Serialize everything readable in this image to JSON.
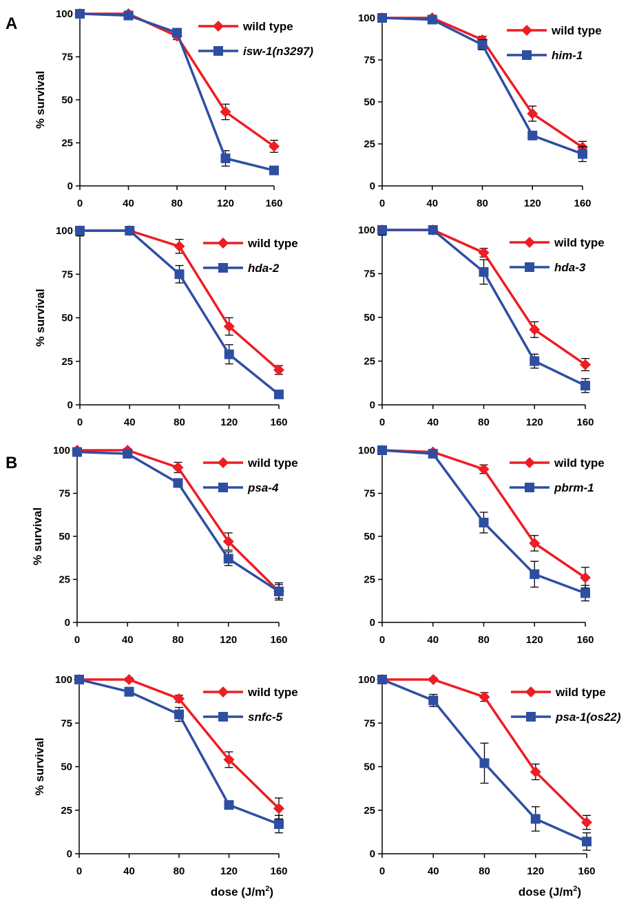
{
  "panel_labels": [
    "A",
    "B"
  ],
  "colors": {
    "wild_type": "#ee1c24",
    "mutant": "#2e4ea2",
    "axis": "#000000"
  },
  "chart_data": [
    {
      "type": "line",
      "categories": [
        0,
        40,
        80,
        120,
        160
      ],
      "ylim": [
        0,
        100
      ],
      "yticks": [
        0,
        25,
        50,
        75,
        100
      ],
      "ylabel": "% survival",
      "xlabel": "",
      "legend_position": "top-right",
      "series": [
        {
          "name": "wild type",
          "marker": "diamond",
          "values": [
            100,
            100,
            87,
            43,
            23
          ],
          "errors": [
            1,
            1,
            2,
            4.5,
            3.5
          ]
        },
        {
          "name": "isw-1(n3297)",
          "marker": "square",
          "values": [
            100,
            99,
            89,
            16,
            9
          ],
          "errors": [
            1,
            1.5,
            2,
            4.5,
            1.5
          ]
        }
      ]
    },
    {
      "type": "line",
      "categories": [
        0,
        40,
        80,
        120,
        160
      ],
      "ylim": [
        0,
        100
      ],
      "yticks": [
        0,
        25,
        50,
        75,
        100
      ],
      "ylabel": "",
      "xlabel": "",
      "legend_position": "top-right",
      "series": [
        {
          "name": "wild type",
          "marker": "diamond",
          "values": [
            100,
            100,
            87,
            43,
            23
          ],
          "errors": [
            1,
            1,
            2,
            4.5,
            3.5
          ]
        },
        {
          "name": "him-1",
          "marker": "square",
          "values": [
            100,
            99,
            84,
            30,
            19
          ],
          "errors": [
            1,
            1,
            3,
            2.5,
            4.5
          ]
        }
      ]
    },
    {
      "type": "line",
      "categories": [
        0,
        40,
        80,
        120,
        160
      ],
      "ylim": [
        0,
        100
      ],
      "yticks": [
        0,
        25,
        50,
        75,
        100
      ],
      "ylabel": "% survival",
      "xlabel": "",
      "legend_position": "top-right",
      "series": [
        {
          "name": "wild type",
          "marker": "diamond",
          "values": [
            100,
            100,
            91,
            45,
            20
          ],
          "errors": [
            1,
            1,
            4,
            5,
            2.5
          ]
        },
        {
          "name": "hda-2",
          "marker": "square",
          "values": [
            100,
            100,
            75,
            29,
            6
          ],
          "errors": [
            3,
            1,
            5,
            5.5,
            1
          ]
        }
      ]
    },
    {
      "type": "line",
      "categories": [
        0,
        40,
        80,
        120,
        160
      ],
      "ylim": [
        0,
        100
      ],
      "yticks": [
        0,
        25,
        50,
        75,
        100
      ],
      "ylabel": "",
      "xlabel": "",
      "legend_position": "top-right",
      "series": [
        {
          "name": "wild type",
          "marker": "diamond",
          "values": [
            100,
            100,
            87,
            43,
            23
          ],
          "errors": [
            1,
            1,
            2.5,
            4.5,
            3.5
          ]
        },
        {
          "name": "hda-3",
          "marker": "square",
          "values": [
            100,
            100,
            76,
            25,
            11
          ],
          "errors": [
            3,
            2,
            7,
            4,
            4
          ]
        }
      ]
    },
    {
      "type": "line",
      "categories": [
        0,
        40,
        80,
        120,
        160
      ],
      "ylim": [
        0,
        100
      ],
      "yticks": [
        0,
        25,
        50,
        75,
        100
      ],
      "ylabel": "% survival",
      "xlabel": "",
      "legend_position": "top-right",
      "series": [
        {
          "name": "wild type",
          "marker": "diamond",
          "values": [
            100,
            100,
            90,
            47,
            18
          ],
          "errors": [
            1,
            1,
            3,
            5,
            4
          ]
        },
        {
          "name": "psa-4",
          "marker": "square",
          "values": [
            99,
            98,
            81,
            37,
            18
          ],
          "errors": [
            1.5,
            1.5,
            2.5,
            4,
            5
          ]
        }
      ]
    },
    {
      "type": "line",
      "categories": [
        0,
        40,
        80,
        120,
        160
      ],
      "ylim": [
        0,
        100
      ],
      "yticks": [
        0,
        25,
        50,
        75,
        100
      ],
      "ylabel": "",
      "xlabel": "",
      "legend_position": "top-right",
      "series": [
        {
          "name": "wild type",
          "marker": "diamond",
          "values": [
            100,
            99,
            89,
            46,
            26
          ],
          "errors": [
            1,
            1,
            2.5,
            4.5,
            6
          ]
        },
        {
          "name": "pbrm-1",
          "marker": "square",
          "values": [
            100,
            98,
            58,
            28,
            17
          ],
          "errors": [
            1,
            1.5,
            6,
            7.5,
            4.5
          ]
        }
      ]
    },
    {
      "type": "line",
      "categories": [
        0,
        40,
        80,
        120,
        160
      ],
      "ylim": [
        0,
        100
      ],
      "yticks": [
        0,
        25,
        50,
        75,
        100
      ],
      "ylabel": "% survival",
      "xlabel": "dose (J/m²)",
      "legend_position": "top-right",
      "series": [
        {
          "name": "wild type",
          "marker": "diamond",
          "values": [
            100,
            100,
            89,
            54,
            26
          ],
          "errors": [
            1,
            1,
            2,
            4.5,
            6
          ]
        },
        {
          "name": "snfc-5",
          "marker": "square",
          "values": [
            100,
            93,
            80,
            28,
            17
          ],
          "errors": [
            1,
            2.5,
            4,
            2,
            5
          ]
        }
      ]
    },
    {
      "type": "line",
      "categories": [
        0,
        40,
        80,
        120,
        160
      ],
      "ylim": [
        0,
        100
      ],
      "yticks": [
        0,
        25,
        50,
        75,
        100
      ],
      "ylabel": "",
      "xlabel": "dose (J/m²)",
      "legend_position": "top-right",
      "series": [
        {
          "name": "wild type",
          "marker": "diamond",
          "values": [
            100,
            100,
            90,
            47,
            18
          ],
          "errors": [
            1,
            1,
            2.5,
            4.5,
            4
          ]
        },
        {
          "name": "psa-1(os22)",
          "marker": "square",
          "values": [
            100,
            88,
            52,
            20,
            7
          ],
          "errors": [
            1,
            3.5,
            11.5,
            7,
            5
          ]
        }
      ]
    }
  ]
}
